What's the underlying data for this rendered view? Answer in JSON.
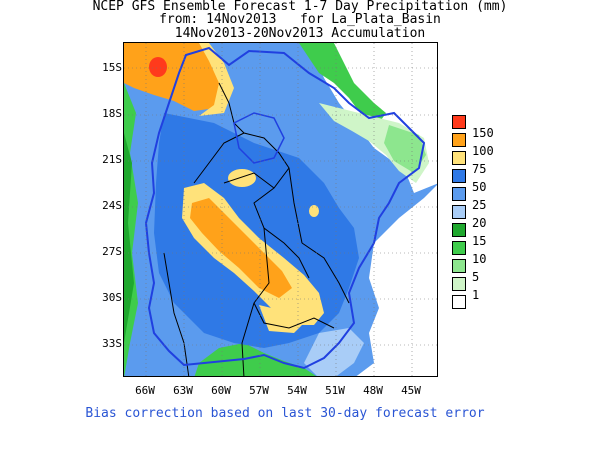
{
  "header": {
    "line1": "NCEP GFS Ensemble Forecast 1-7 Day Precipitation (mm)",
    "line2": "from: 14Nov2013   for La_Plata_Basin",
    "line3": "14Nov2013-20Nov2013 Accumulation"
  },
  "map": {
    "lat_labels": [
      "15S",
      "18S",
      "21S",
      "24S",
      "27S",
      "30S",
      "33S"
    ],
    "lon_labels": [
      "66W",
      "63W",
      "60W",
      "57W",
      "54W",
      "51W",
      "48W",
      "45W"
    ]
  },
  "colorbar": {
    "levels": [
      {
        "label": "150",
        "color": "#ff3a1c"
      },
      {
        "label": "100",
        "color": "#ffa21a"
      },
      {
        "label": "75",
        "color": "#ffe27a"
      },
      {
        "label": "50",
        "color": "#2f79e6"
      },
      {
        "label": "25",
        "color": "#5b9bee"
      },
      {
        "label": "20",
        "color": "#a9cdf7"
      },
      {
        "label": "15",
        "color": "#1fa82e"
      },
      {
        "label": "10",
        "color": "#3fcc4c"
      },
      {
        "label": "5",
        "color": "#8de68e"
      },
      {
        "label": "1",
        "color": "#cff5c8"
      },
      {
        "label": "",
        "color": "#ffffff"
      }
    ]
  },
  "footer": {
    "note": "Bias correction based on last 30-day forecast error"
  }
}
